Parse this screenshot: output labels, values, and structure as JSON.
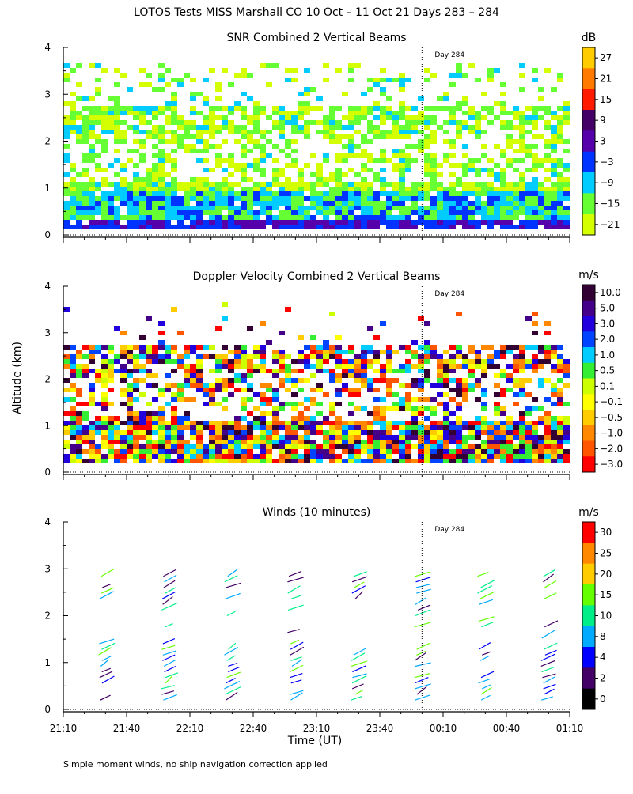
{
  "figure_title": "LOTOS Tests MISS Marshall CO  10 Oct – 11 Oct 21 Days 283 – 284",
  "y_axis_label": "Altitude (km)",
  "x_axis_label": "Time (UT)",
  "x_ticks": [
    "21:10",
    "21:40",
    "22:10",
    "22:40",
    "23:10",
    "23:40",
    "00:10",
    "00:40",
    "01:10"
  ],
  "y_ticks": [
    "0",
    "1",
    "2",
    "3",
    "4"
  ],
  "day_marker": "Day 284",
  "footnote": "Simple moment winds, no ship navigation correction applied",
  "colors": {
    "snr": [
      "#d4ff00",
      "#66ff33",
      "#00ccff",
      "#0033ff",
      "#5500aa",
      "#440066",
      "#ff1a00",
      "#ff7a00",
      "#ffcc00"
    ],
    "velocity": [
      "#ff0000",
      "#ff5500",
      "#ff8800",
      "#ffcc00",
      "#ffff00",
      "#ccff00",
      "#33ee33",
      "#00ccff",
      "#0044ff",
      "#2200dd",
      "#440088",
      "#330033"
    ],
    "winds": [
      "#000000",
      "#440066",
      "#0000ff",
      "#00aaff",
      "#00ee88",
      "#66ff00",
      "#ffcc00",
      "#ff8800",
      "#ff0000"
    ]
  },
  "chart_data": [
    {
      "type": "heatmap",
      "id": "snr",
      "title": "SNR Combined 2 Vertical Beams",
      "ylabel": "Altitude (km)",
      "xlabel": "Time (UT)",
      "xlim": [
        "21:10",
        "01:10"
      ],
      "ylim": [
        0,
        4
      ],
      "colorbar_unit": "dB",
      "colorbar_ticks": [
        "27",
        "21",
        "15",
        "9",
        "3",
        "−3",
        "−9",
        "−15",
        "−21"
      ],
      "annotation": "Day 284",
      "day_boundary": "00:00"
    },
    {
      "type": "heatmap",
      "id": "velocity",
      "title": "Doppler Velocity Combined 2 Vertical Beams",
      "ylabel": "Altitude (km)",
      "xlabel": "Time (UT)",
      "xlim": [
        "21:10",
        "01:10"
      ],
      "ylim": [
        0,
        4
      ],
      "colorbar_unit": "m/s",
      "colorbar_ticks": [
        "10.0",
        "5.0",
        "3.0",
        "2.0",
        "1.0",
        "0.5",
        "0.1",
        "−0.1",
        "−0.5",
        "−1.0",
        "−2.0",
        "−3.0"
      ],
      "annotation": "Day 284",
      "day_boundary": "00:00"
    },
    {
      "type": "scatter",
      "id": "winds",
      "title": "Winds (10 minutes)",
      "ylabel": "Altitude (km)",
      "xlabel": "Time (UT)",
      "xlim": [
        "21:10",
        "01:10"
      ],
      "ylim": [
        0,
        4
      ],
      "colorbar_unit": "m/s",
      "colorbar_ticks": [
        "30",
        "25",
        "20",
        "15",
        "10",
        "8",
        "4",
        "2",
        "0"
      ],
      "annotation": "Day 284",
      "day_boundary": "00:00",
      "profile_times": [
        "21:30",
        "22:00",
        "22:30",
        "23:00",
        "23:30",
        "00:00",
        "00:30",
        "01:00"
      ]
    }
  ]
}
